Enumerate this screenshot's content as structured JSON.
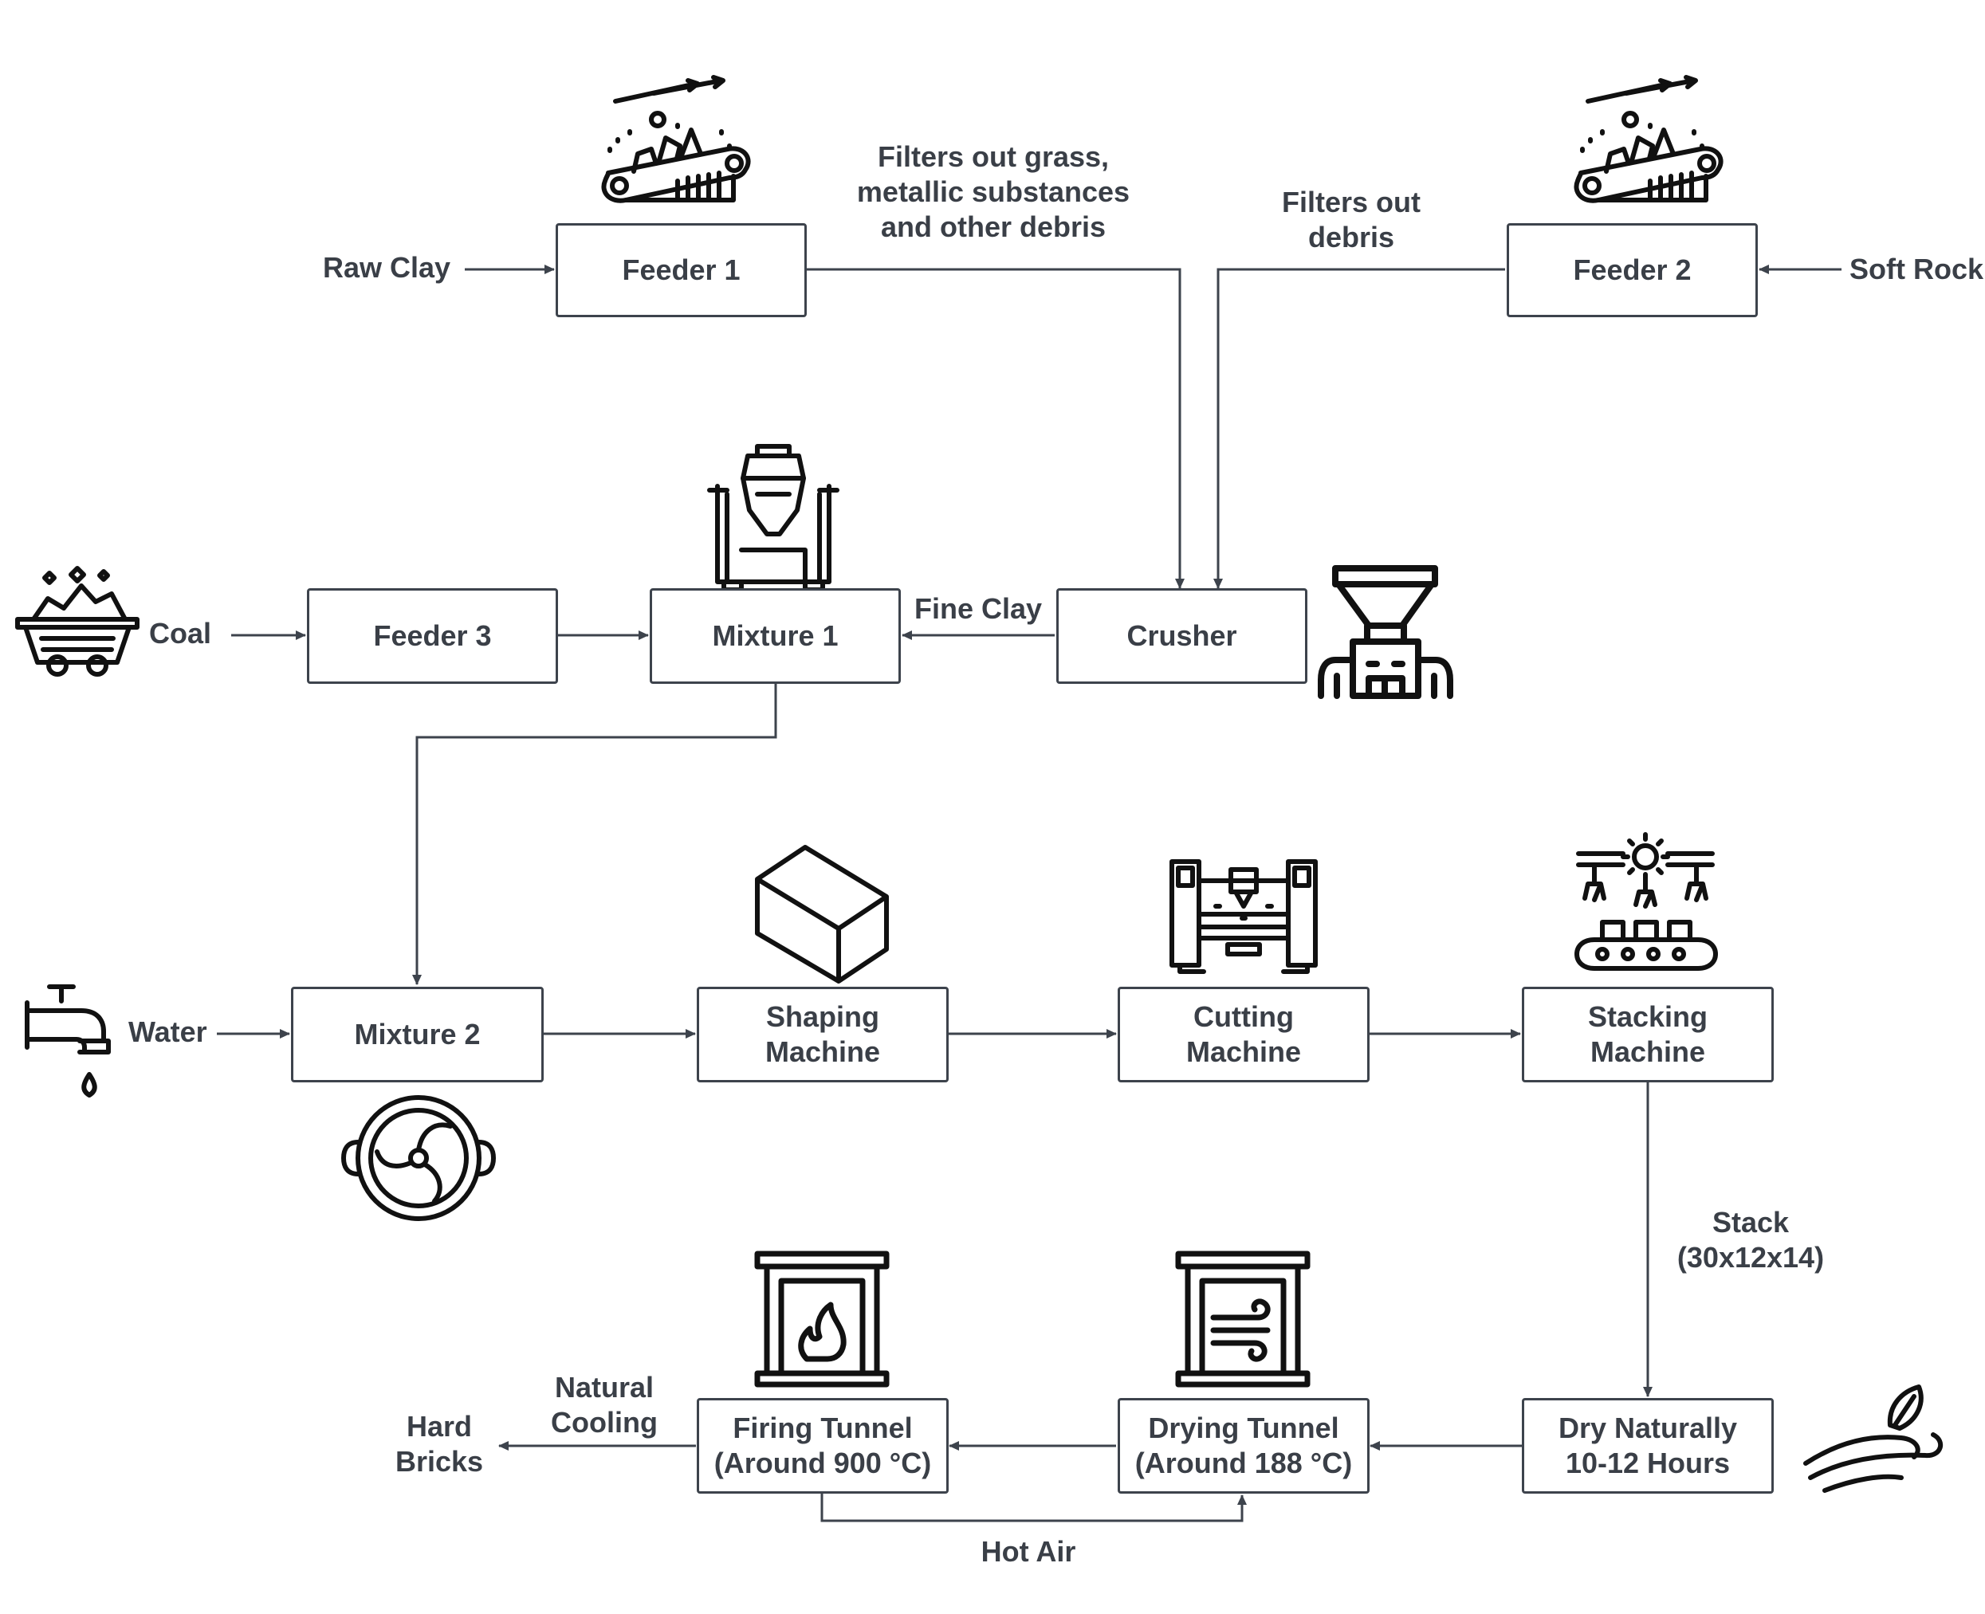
{
  "inputs": {
    "raw_clay": "Raw Clay",
    "soft_rock": "Soft Rock",
    "coal": "Coal",
    "water": "Water"
  },
  "nodes": {
    "feeder1": "Feeder 1",
    "feeder2": "Feeder 2",
    "feeder3": "Feeder 3",
    "mixture1": "Mixture 1",
    "crusher": "Crusher",
    "mixture2": "Mixture 2",
    "shaping": [
      "Shaping",
      "Machine"
    ],
    "cutting": [
      "Cutting",
      "Machine"
    ],
    "stacking": [
      "Stacking",
      "Machine"
    ],
    "dry_naturally": [
      "Dry Naturally",
      "10-12 Hours"
    ],
    "drying_tunnel": [
      "Drying Tunnel",
      "(Around 188 °C)"
    ],
    "firing_tunnel": [
      "Firing Tunnel",
      "(Around 900 °C)"
    ]
  },
  "annotations": {
    "filters_feeder1": [
      "Filters out grass,",
      "metallic substances",
      "and other debris"
    ],
    "filters_feeder2": [
      "Filters out",
      "debris"
    ],
    "fine_clay": "Fine Clay",
    "stack": [
      "Stack",
      "(30x12x14)"
    ],
    "hot_air": "Hot Air",
    "natural_cooling": [
      "Natural",
      "Cooling"
    ],
    "hard_bricks": [
      "Hard",
      "Bricks"
    ]
  },
  "icons": [
    "conveyor-icon",
    "mixer-icon",
    "mine-cart-icon",
    "hopper-crusher-icon",
    "brick-icon",
    "cutting-machine-icon",
    "robotic-arms-icon",
    "faucet-icon",
    "fan-icon",
    "furnace-fire-icon",
    "furnace-wind-icon",
    "wind-leaf-icon"
  ],
  "colors": {
    "line": "#3d434c",
    "text": "#3a3f47",
    "icon": "#111111"
  }
}
